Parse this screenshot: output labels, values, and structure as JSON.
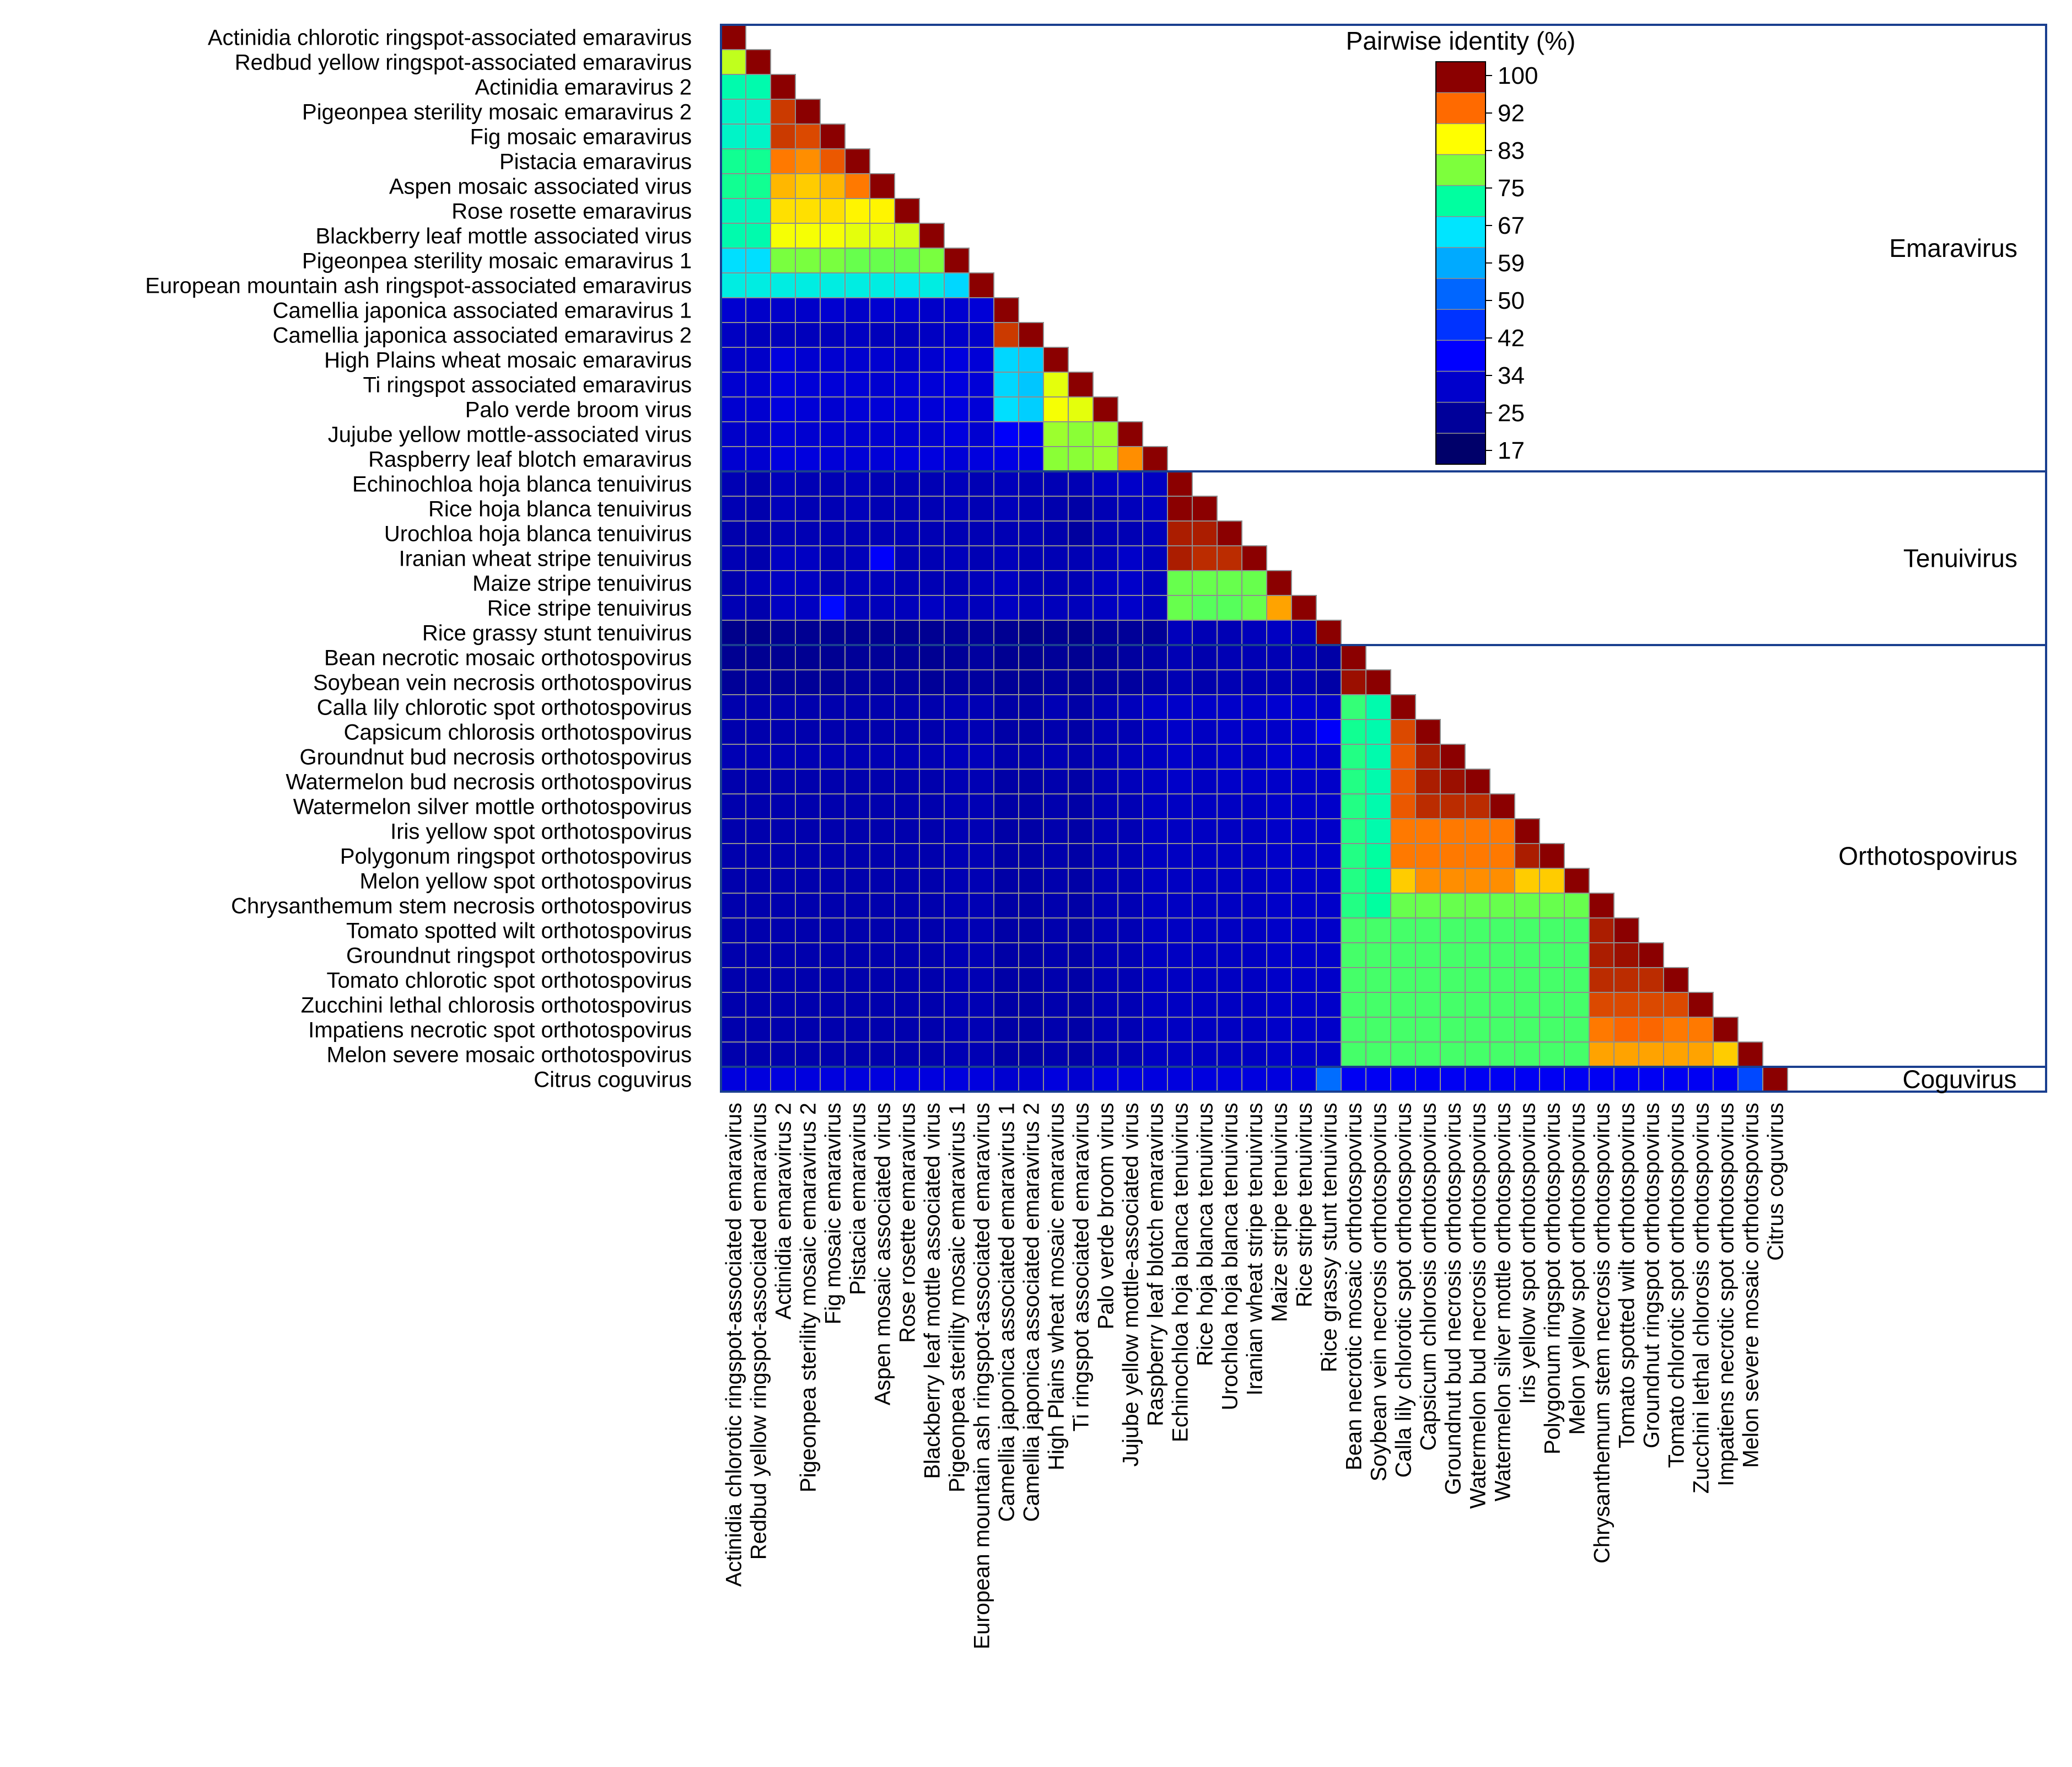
{
  "chart_data": {
    "type": "heatmap",
    "title": "",
    "matrix_shape": "lower-triangular",
    "cell_value_unit": "Pairwise identity (%)",
    "labels": [
      "Actinidia chlorotic ringspot-associated emaravirus",
      "Redbud yellow ringspot-associated emaravirus",
      "Actinidia emaravirus 2",
      "Pigeonpea sterility mosaic emaravirus 2",
      "Fig mosaic emaravirus",
      "Pistacia emaravirus",
      "Aspen mosaic associated virus",
      "Rose rosette emaravirus",
      "Blackberry leaf mottle associated virus",
      "Pigeonpea sterility mosaic emaravirus 1",
      "European mountain ash ringspot-associated emaravirus",
      "Camellia japonica associated emaravirus 1",
      "Camellia japonica associated emaravirus 2",
      "High Plains wheat mosaic emaravirus",
      "Ti ringspot associated emaravirus",
      "Palo verde broom virus",
      "Jujube yellow mottle-associated virus",
      "Raspberry leaf blotch emaravirus",
      "Echinochloa hoja blanca tenuivirus",
      "Rice hoja blanca tenuivirus",
      "Urochloa hoja blanca tenuivirus",
      "Iranian wheat stripe tenuivirus",
      "Maize stripe tenuivirus",
      "Rice stripe tenuivirus",
      "Rice grassy stunt tenuivirus",
      "Bean necrotic mosaic orthotospovirus",
      "Soybean vein necrosis orthotospovirus",
      "Calla lily chlorotic spot orthotospovirus",
      "Capsicum chlorosis orthotospovirus",
      "Groundnut bud necrosis orthotospovirus",
      "Watermelon bud necrosis orthotospovirus",
      "Watermelon silver mottle orthotospovirus",
      "Iris yellow spot orthotospovirus",
      "Polygonum ringspot orthotospovirus",
      "Melon yellow spot orthotospovirus",
      "Chrysanthemum stem necrosis orthotospovirus",
      "Tomato spotted wilt orthotospovirus",
      "Groundnut ringspot orthotospovirus",
      "Tomato chlorotic spot orthotospovirus",
      "Zucchini lethal chlorosis orthotospovirus",
      "Impatiens necrotic spot orthotospovirus",
      "Melon severe mosaic orthotospovirus",
      "Citrus coguvirus"
    ],
    "groups": [
      {
        "name": "Emaravirus",
        "start": 0,
        "end": 17
      },
      {
        "name": "Tenuivirus",
        "start": 18,
        "end": 24
      },
      {
        "name": "Orthotospovirus",
        "start": 25,
        "end": 41
      },
      {
        "name": "Coguvirus",
        "start": 42,
        "end": 42
      }
    ],
    "values": [
      [
        100
      ],
      [
        82,
        100
      ],
      [
        70,
        70,
        100
      ],
      [
        68,
        68,
        96,
        100
      ],
      [
        68,
        68,
        96,
        95,
        100
      ],
      [
        72,
        72,
        92,
        91,
        94,
        100
      ],
      [
        72,
        72,
        89,
        88,
        89,
        92,
        100
      ],
      [
        69,
        69,
        87,
        87,
        87,
        86,
        86,
        100
      ],
      [
        70,
        70,
        85,
        85,
        85,
        84,
        84,
        83,
        100
      ],
      [
        63,
        63,
        78,
        78,
        78,
        77,
        77,
        77,
        78,
        100
      ],
      [
        66,
        66,
        66,
        66,
        66,
        66,
        66,
        65,
        66,
        62,
        100
      ],
      [
        28,
        27,
        27,
        27,
        28,
        27,
        28,
        28,
        27,
        28,
        29,
        100
      ],
      [
        26,
        25,
        25,
        25,
        25,
        26,
        25,
        25,
        26,
        27,
        27,
        96,
        100
      ],
      [
        27,
        27,
        30,
        28,
        28,
        28,
        28,
        27,
        28,
        30,
        29,
        62,
        61,
        100
      ],
      [
        28,
        28,
        30,
        29,
        29,
        29,
        28,
        29,
        29,
        30,
        29,
        62,
        60,
        84,
        100
      ],
      [
        28,
        28,
        30,
        29,
        28,
        29,
        29,
        29,
        29,
        30,
        29,
        63,
        61,
        85,
        84,
        100
      ],
      [
        27,
        27,
        29,
        28,
        28,
        28,
        28,
        28,
        28,
        30,
        28,
        34,
        33,
        80,
        79,
        80,
        100
      ],
      [
        28,
        28,
        30,
        30,
        29,
        29,
        29,
        30,
        30,
        29,
        30,
        31,
        31,
        79,
        79,
        80,
        91,
        100
      ],
      [
        24,
        23,
        25,
        24,
        24,
        25,
        24,
        24,
        24,
        25,
        24,
        25,
        24,
        24,
        24,
        26,
        27,
        26,
        100
      ],
      [
        24,
        23,
        25,
        24,
        24,
        25,
        24,
        24,
        24,
        25,
        24,
        25,
        24,
        23,
        22,
        24,
        25,
        26,
        100,
        100
      ],
      [
        23,
        23,
        24,
        24,
        24,
        24,
        24,
        24,
        24,
        24,
        24,
        24,
        24,
        23,
        21,
        24,
        24,
        25,
        98,
        98,
        100
      ],
      [
        24,
        23,
        26,
        26,
        24,
        25,
        34,
        24,
        24,
        25,
        24,
        25,
        24,
        24,
        24,
        25,
        27,
        25,
        98,
        97,
        97,
        100
      ],
      [
        23,
        25,
        26,
        26,
        24,
        25,
        25,
        24,
        24,
        24,
        25,
        26,
        24,
        24,
        24,
        26,
        27,
        25,
        77,
        77,
        77,
        77,
        100
      ],
      [
        24,
        23,
        26,
        26,
        36,
        25,
        25,
        25,
        26,
        25,
        25,
        26,
        25,
        25,
        25,
        26,
        27,
        25,
        77,
        76,
        76,
        77,
        90,
        100
      ],
      [
        18,
        18,
        19,
        19,
        19,
        19,
        19,
        19,
        19,
        20,
        20,
        19,
        18,
        19,
        18,
        20,
        20,
        20,
        25,
        24,
        24,
        25,
        26,
        25,
        100
      ],
      [
        19,
        19,
        19,
        19,
        19,
        20,
        20,
        20,
        19,
        20,
        21,
        19,
        19,
        20,
        19,
        20,
        21,
        22,
        24,
        23,
        24,
        24,
        24,
        24,
        22,
        100
      ],
      [
        20,
        21,
        20,
        20,
        20,
        21,
        21,
        21,
        20,
        21,
        21,
        20,
        20,
        21,
        20,
        21,
        21,
        22,
        24,
        23,
        24,
        24,
        24,
        24,
        22,
        99,
        100
      ],
      [
        23,
        23,
        23,
        23,
        23,
        23,
        23,
        23,
        23,
        24,
        24,
        22,
        22,
        24,
        22,
        24,
        25,
        27,
        27,
        27,
        27,
        27,
        28,
        28,
        27,
        74,
        70,
        100
      ],
      [
        23,
        23,
        23,
        23,
        23,
        23,
        23,
        23,
        23,
        24,
        24,
        22,
        22,
        23,
        22,
        24,
        24,
        26,
        27,
        26,
        27,
        27,
        27,
        28,
        34,
        72,
        70,
        95,
        100
      ],
      [
        24,
        24,
        24,
        24,
        24,
        24,
        24,
        24,
        24,
        25,
        25,
        23,
        23,
        24,
        23,
        24,
        25,
        26,
        27,
        26,
        27,
        26,
        28,
        28,
        27,
        73,
        70,
        94,
        98,
        100
      ],
      [
        23,
        23,
        23,
        23,
        23,
        23,
        23,
        23,
        23,
        24,
        24,
        22,
        22,
        23,
        22,
        24,
        25,
        26,
        27,
        26,
        27,
        27,
        27,
        27,
        27,
        73,
        70,
        94,
        98,
        99,
        100
      ],
      [
        23,
        23,
        23,
        23,
        23,
        23,
        23,
        23,
        23,
        24,
        24,
        22,
        22,
        23,
        22,
        24,
        24,
        26,
        26,
        26,
        26,
        26,
        27,
        27,
        27,
        73,
        70,
        94,
        97,
        97,
        97,
        100
      ],
      [
        23,
        23,
        23,
        23,
        23,
        23,
        23,
        23,
        23,
        24,
        24,
        22,
        22,
        23,
        22,
        24,
        24,
        26,
        26,
        26,
        26,
        26,
        27,
        27,
        27,
        73,
        70,
        92,
        92,
        92,
        92,
        92,
        100
      ],
      [
        23,
        23,
        23,
        23,
        23,
        23,
        23,
        23,
        23,
        24,
        24,
        22,
        22,
        23,
        22,
        24,
        24,
        26,
        26,
        26,
        26,
        26,
        27,
        27,
        27,
        73,
        71,
        92,
        92,
        92,
        92,
        92,
        98,
        100
      ],
      [
        23,
        23,
        23,
        23,
        23,
        23,
        23,
        23,
        23,
        24,
        24,
        22,
        22,
        23,
        22,
        24,
        24,
        26,
        26,
        26,
        26,
        26,
        27,
        27,
        27,
        73,
        71,
        88,
        91,
        91,
        91,
        91,
        88,
        88,
        100
      ],
      [
        23,
        23,
        23,
        23,
        23,
        23,
        23,
        23,
        23,
        24,
        24,
        22,
        22,
        23,
        22,
        24,
        24,
        26,
        26,
        26,
        26,
        26,
        27,
        27,
        27,
        73,
        71,
        77,
        77,
        77,
        77,
        77,
        77,
        77,
        77,
        100
      ],
      [
        23,
        23,
        23,
        23,
        23,
        23,
        23,
        23,
        23,
        24,
        24,
        22,
        22,
        23,
        22,
        24,
        24,
        26,
        26,
        26,
        26,
        26,
        27,
        27,
        27,
        75,
        75,
        75,
        75,
        75,
        75,
        75,
        75,
        75,
        75,
        98,
        100
      ],
      [
        23,
        23,
        23,
        23,
        23,
        23,
        23,
        23,
        23,
        24,
        24,
        22,
        22,
        23,
        22,
        24,
        24,
        26,
        26,
        26,
        26,
        26,
        27,
        27,
        27,
        75,
        75,
        75,
        75,
        75,
        75,
        75,
        75,
        75,
        75,
        98,
        99,
        100
      ],
      [
        23,
        23,
        23,
        23,
        23,
        23,
        23,
        23,
        23,
        24,
        24,
        22,
        22,
        23,
        22,
        24,
        24,
        26,
        26,
        26,
        26,
        26,
        27,
        27,
        27,
        75,
        75,
        75,
        75,
        75,
        75,
        75,
        75,
        75,
        75,
        97,
        97,
        97,
        100
      ],
      [
        23,
        23,
        23,
        23,
        23,
        23,
        23,
        23,
        23,
        24,
        24,
        22,
        22,
        23,
        22,
        24,
        24,
        26,
        26,
        26,
        26,
        26,
        27,
        27,
        27,
        75,
        75,
        75,
        75,
        75,
        75,
        75,
        75,
        75,
        75,
        95,
        95,
        95,
        95,
        100
      ],
      [
        23,
        23,
        23,
        23,
        23,
        23,
        23,
        23,
        23,
        24,
        24,
        22,
        22,
        23,
        22,
        24,
        24,
        26,
        26,
        26,
        26,
        26,
        27,
        27,
        27,
        75,
        75,
        75,
        75,
        75,
        75,
        75,
        75,
        75,
        75,
        92,
        93,
        93,
        92,
        92,
        100
      ],
      [
        23,
        23,
        23,
        23,
        23,
        23,
        23,
        23,
        23,
        24,
        24,
        22,
        22,
        23,
        22,
        24,
        24,
        26,
        26,
        26,
        26,
        26,
        27,
        27,
        27,
        75,
        75,
        75,
        75,
        75,
        75,
        75,
        75,
        75,
        75,
        90,
        90,
        90,
        90,
        90,
        88,
        100
      ],
      [
        30,
        30,
        30,
        30,
        30,
        30,
        30,
        30,
        30,
        30,
        30,
        28,
        28,
        30,
        28,
        30,
        30,
        30,
        30,
        30,
        30,
        30,
        30,
        30,
        50,
        33,
        33,
        33,
        33,
        33,
        33,
        33,
        33,
        33,
        33,
        33,
        33,
        33,
        33,
        33,
        33,
        45,
        100
      ]
    ],
    "colorbar": {
      "title": "Pairwise identity (%)",
      "ticks": [
        100,
        92,
        83,
        75,
        67,
        59,
        50,
        42,
        34,
        25,
        17
      ],
      "range": [
        13,
        100
      ],
      "colors": [
        "#8b0000",
        "#ff6a00",
        "#ffff00",
        "#7dff3c",
        "#00ffa0",
        "#00e5ff",
        "#00aaff",
        "#0066ff",
        "#0033ff",
        "#0000ff",
        "#0000cc",
        "#00009a",
        "#00006a"
      ]
    }
  }
}
